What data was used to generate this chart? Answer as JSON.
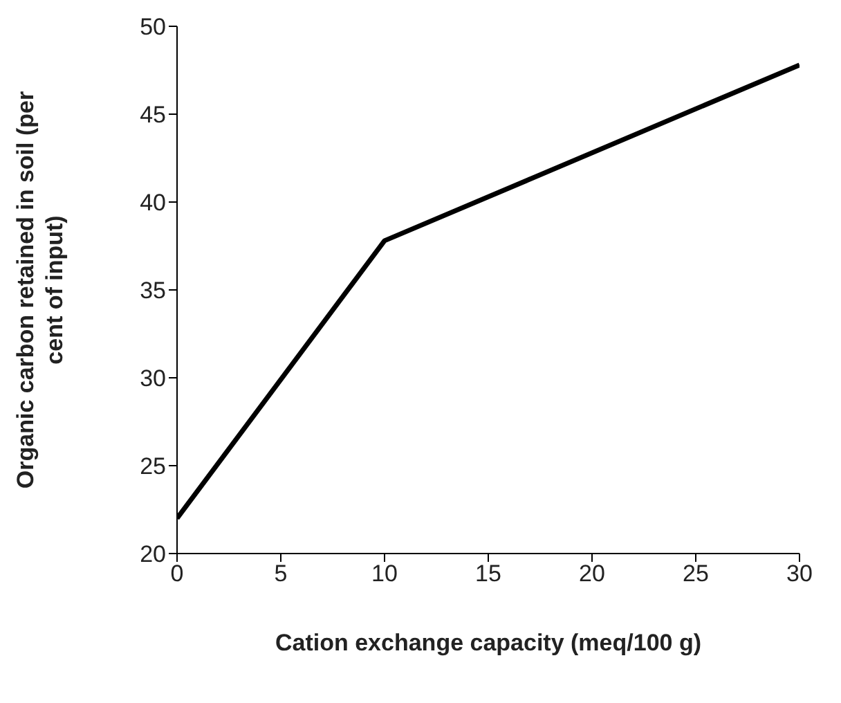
{
  "chart_data": {
    "type": "line",
    "xlabel": "Cation exchange capacity (meq/100 g)",
    "ylabel": "Organic carbon retained in soil (per cent of input)",
    "x": [
      0,
      10,
      30
    ],
    "series": [
      {
        "color": "#000000",
        "values": [
          22,
          37.8,
          47.8
        ]
      }
    ],
    "xlim": [
      0,
      30
    ],
    "xticks": [
      0,
      5,
      10,
      15,
      20,
      25,
      30
    ],
    "ylim": [
      20,
      50
    ],
    "yticks": [
      20,
      25,
      30,
      35,
      40,
      45,
      50
    ],
    "grid": false,
    "legend": false,
    "marker": "none",
    "line_style": "solid"
  }
}
